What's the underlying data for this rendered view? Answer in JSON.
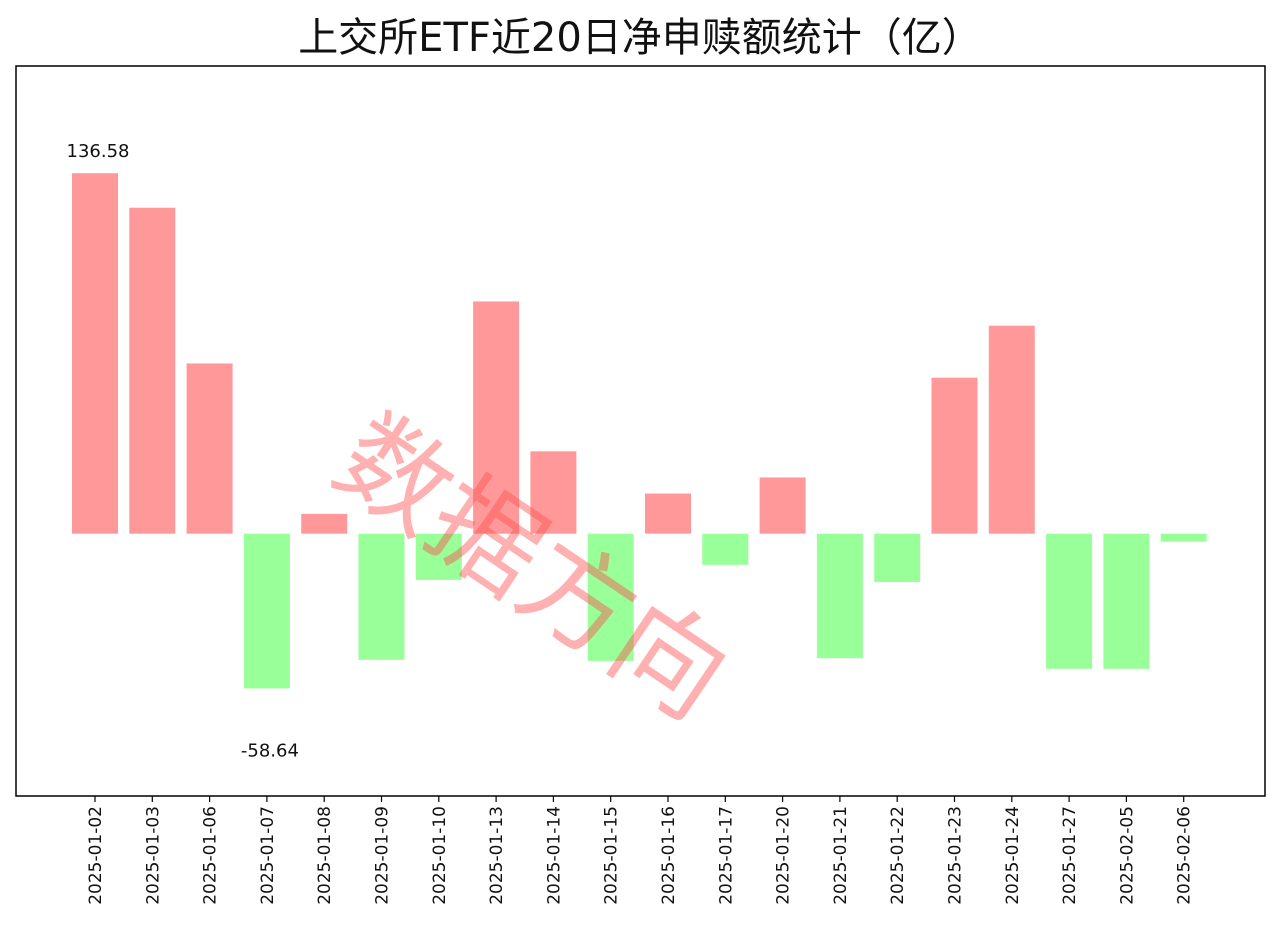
{
  "chart_data": {
    "type": "bar",
    "title": "上交所ETF近20日净申赎额统计（亿）",
    "xlabel": "",
    "ylabel": "",
    "categories": [
      "2025-01-02",
      "2025-01-03",
      "2025-01-06",
      "2025-01-07",
      "2025-01-08",
      "2025-01-09",
      "2025-01-10",
      "2025-01-13",
      "2025-01-14",
      "2025-01-15",
      "2025-01-16",
      "2025-01-17",
      "2025-01-20",
      "2025-01-21",
      "2025-01-22",
      "2025-01-23",
      "2025-01-24",
      "2025-01-27",
      "2025-02-05",
      "2025-02-06"
    ],
    "values": [
      136.58,
      123.5,
      64.5,
      -58.64,
      7.5,
      -47.8,
      -17.5,
      88.0,
      31.2,
      -48.2,
      15.2,
      -11.8,
      21.3,
      -47.2,
      -18.3,
      59.1,
      78.8,
      -51.2,
      -51.2,
      -3.0
    ],
    "ylim": [
      -99.4,
      177.2
    ],
    "annotations": [
      {
        "category": "2025-01-02",
        "text": "136.58"
      },
      {
        "category": "2025-01-07",
        "text": "-58.64"
      }
    ],
    "colors": {
      "positive": "#ff9999",
      "negative": "#99ff99"
    },
    "grid": false,
    "legend": "none"
  },
  "watermark": "数据方向"
}
